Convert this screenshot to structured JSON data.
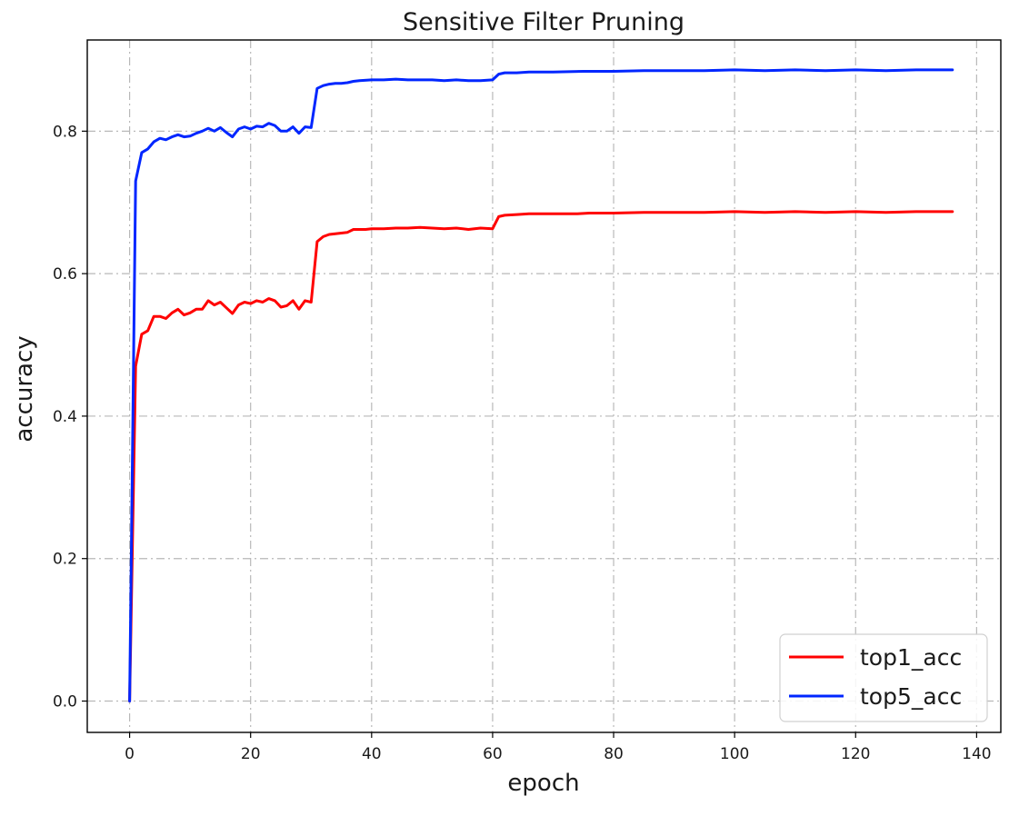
{
  "chart_data": {
    "type": "line",
    "title": "Sensitive Filter Pruning",
    "xlabel": "epoch",
    "ylabel": "accuracy",
    "xlim": [
      -7,
      144
    ],
    "ylim": [
      -0.044,
      0.928
    ],
    "xticks": [
      0,
      20,
      40,
      60,
      80,
      100,
      120,
      140
    ],
    "yticks": [
      0.0,
      0.2,
      0.4,
      0.6,
      0.8
    ],
    "xtick_labels": [
      "0",
      "20",
      "40",
      "60",
      "80",
      "100",
      "120",
      "140"
    ],
    "ytick_labels": [
      "0.0",
      "0.2",
      "0.4",
      "0.6",
      "0.8"
    ],
    "grid": true,
    "legend_position": "bottom-right",
    "series": [
      {
        "name": "top1_acc",
        "color": "#ff0000",
        "points": [
          [
            0,
            0.0
          ],
          [
            1,
            0.47
          ],
          [
            2,
            0.515
          ],
          [
            3,
            0.52
          ],
          [
            4,
            0.54
          ],
          [
            5,
            0.54
          ],
          [
            6,
            0.537
          ],
          [
            7,
            0.545
          ],
          [
            8,
            0.55
          ],
          [
            9,
            0.542
          ],
          [
            10,
            0.545
          ],
          [
            11,
            0.55
          ],
          [
            12,
            0.55
          ],
          [
            13,
            0.562
          ],
          [
            14,
            0.556
          ],
          [
            15,
            0.56
          ],
          [
            16,
            0.552
          ],
          [
            17,
            0.544
          ],
          [
            18,
            0.556
          ],
          [
            19,
            0.56
          ],
          [
            20,
            0.558
          ],
          [
            21,
            0.562
          ],
          [
            22,
            0.56
          ],
          [
            23,
            0.565
          ],
          [
            24,
            0.562
          ],
          [
            25,
            0.553
          ],
          [
            26,
            0.555
          ],
          [
            27,
            0.562
          ],
          [
            28,
            0.55
          ],
          [
            29,
            0.562
          ],
          [
            30,
            0.56
          ],
          [
            31,
            0.645
          ],
          [
            32,
            0.652
          ],
          [
            33,
            0.655
          ],
          [
            34,
            0.656
          ],
          [
            35,
            0.657
          ],
          [
            36,
            0.658
          ],
          [
            37,
            0.662
          ],
          [
            38,
            0.662
          ],
          [
            39,
            0.662
          ],
          [
            40,
            0.663
          ],
          [
            42,
            0.663
          ],
          [
            44,
            0.664
          ],
          [
            46,
            0.664
          ],
          [
            48,
            0.665
          ],
          [
            50,
            0.664
          ],
          [
            52,
            0.663
          ],
          [
            54,
            0.664
          ],
          [
            56,
            0.662
          ],
          [
            58,
            0.664
          ],
          [
            60,
            0.663
          ],
          [
            61,
            0.68
          ],
          [
            62,
            0.682
          ],
          [
            64,
            0.683
          ],
          [
            66,
            0.684
          ],
          [
            68,
            0.684
          ],
          [
            70,
            0.684
          ],
          [
            72,
            0.684
          ],
          [
            74,
            0.684
          ],
          [
            76,
            0.685
          ],
          [
            78,
            0.685
          ],
          [
            80,
            0.685
          ],
          [
            85,
            0.686
          ],
          [
            90,
            0.686
          ],
          [
            95,
            0.686
          ],
          [
            100,
            0.687
          ],
          [
            105,
            0.686
          ],
          [
            110,
            0.687
          ],
          [
            115,
            0.686
          ],
          [
            120,
            0.687
          ],
          [
            125,
            0.686
          ],
          [
            130,
            0.687
          ],
          [
            136,
            0.687
          ]
        ]
      },
      {
        "name": "top5_acc",
        "color": "#0026ff",
        "points": [
          [
            0,
            0.0
          ],
          [
            1,
            0.73
          ],
          [
            2,
            0.77
          ],
          [
            3,
            0.775
          ],
          [
            4,
            0.785
          ],
          [
            5,
            0.79
          ],
          [
            6,
            0.788
          ],
          [
            7,
            0.792
          ],
          [
            8,
            0.795
          ],
          [
            9,
            0.792
          ],
          [
            10,
            0.793
          ],
          [
            11,
            0.797
          ],
          [
            12,
            0.8
          ],
          [
            13,
            0.804
          ],
          [
            14,
            0.8
          ],
          [
            15,
            0.805
          ],
          [
            16,
            0.798
          ],
          [
            17,
            0.792
          ],
          [
            18,
            0.803
          ],
          [
            19,
            0.806
          ],
          [
            20,
            0.803
          ],
          [
            21,
            0.807
          ],
          [
            22,
            0.806
          ],
          [
            23,
            0.811
          ],
          [
            24,
            0.808
          ],
          [
            25,
            0.8
          ],
          [
            26,
            0.8
          ],
          [
            27,
            0.806
          ],
          [
            28,
            0.797
          ],
          [
            29,
            0.806
          ],
          [
            30,
            0.805
          ],
          [
            31,
            0.86
          ],
          [
            32,
            0.864
          ],
          [
            33,
            0.866
          ],
          [
            34,
            0.867
          ],
          [
            35,
            0.867
          ],
          [
            36,
            0.868
          ],
          [
            37,
            0.87
          ],
          [
            38,
            0.871
          ],
          [
            40,
            0.872
          ],
          [
            42,
            0.872
          ],
          [
            44,
            0.873
          ],
          [
            46,
            0.872
          ],
          [
            48,
            0.872
          ],
          [
            50,
            0.872
          ],
          [
            52,
            0.871
          ],
          [
            54,
            0.872
          ],
          [
            56,
            0.871
          ],
          [
            58,
            0.871
          ],
          [
            60,
            0.872
          ],
          [
            61,
            0.88
          ],
          [
            62,
            0.882
          ],
          [
            64,
            0.882
          ],
          [
            66,
            0.883
          ],
          [
            68,
            0.883
          ],
          [
            70,
            0.883
          ],
          [
            75,
            0.884
          ],
          [
            80,
            0.884
          ],
          [
            85,
            0.885
          ],
          [
            90,
            0.885
          ],
          [
            95,
            0.885
          ],
          [
            100,
            0.886
          ],
          [
            105,
            0.885
          ],
          [
            110,
            0.886
          ],
          [
            115,
            0.885
          ],
          [
            120,
            0.886
          ],
          [
            125,
            0.885
          ],
          [
            130,
            0.886
          ],
          [
            136,
            0.886
          ]
        ]
      }
    ]
  }
}
